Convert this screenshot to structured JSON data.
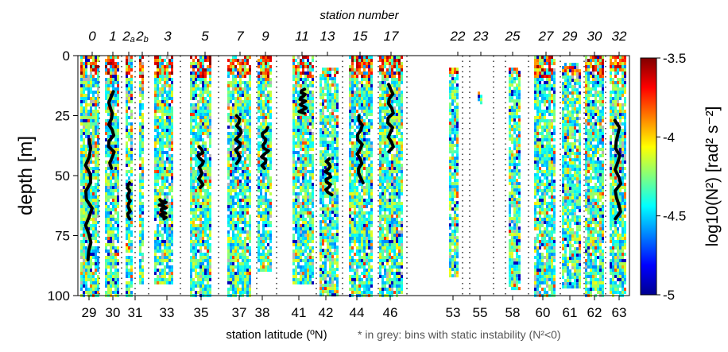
{
  "figure": {
    "top_label": "station number",
    "footnote": "* in grey: bins with static instability (N²<0)"
  },
  "chart_data": {
    "type": "heatmap",
    "xlabel": "station latitude (ºN)",
    "ylabel": "depth [m]",
    "ylim": [
      0,
      100
    ],
    "yticks": [
      0,
      25,
      50,
      75,
      100
    ],
    "colorbar": {
      "label": "log10(N²) [rad² s⁻²]",
      "range": [
        -5,
        -3.5
      ],
      "ticks": [
        "-3.5",
        "-4",
        "-4.5",
        "-5"
      ],
      "tick_values": [
        -3.5,
        -4,
        -4.5,
        -5
      ]
    },
    "station_numbers": [
      "0",
      "1",
      "2a",
      "2b",
      "3",
      "5",
      "7",
      "9",
      "11",
      "13",
      "15",
      "17",
      "22",
      "23",
      "25",
      "27",
      "29",
      "30",
      "32"
    ],
    "latitude_labels": [
      "29",
      "30",
      "31",
      "33",
      "35",
      "37",
      "38",
      "41",
      "42",
      "44",
      "46",
      "53",
      "55",
      "58",
      "60",
      "61",
      "62",
      "63"
    ],
    "grey_meaning": "N²<0",
    "stations": [
      {
        "num": "0",
        "lat": 29,
        "depth_range": [
          0,
          100
        ],
        "black_line_depth": [
          35,
          85
        ]
      },
      {
        "num": "1",
        "lat": 30,
        "depth_range": [
          0,
          100
        ],
        "black_line_depth": [
          15,
          47
        ]
      },
      {
        "num": "2a",
        "lat": 31,
        "depth_range": [
          0,
          100
        ],
        "black_line_depth": [
          53,
          68
        ]
      },
      {
        "num": "2b",
        "lat": 31,
        "depth_range": [
          0,
          95
        ],
        "black_line_depth": null
      },
      {
        "num": "3",
        "lat": 33,
        "depth_range": [
          0,
          95
        ],
        "black_line_depth": [
          60,
          68
        ]
      },
      {
        "num": "5",
        "lat": 35,
        "depth_range": [
          0,
          100
        ],
        "black_line_depth": [
          38,
          55
        ]
      },
      {
        "num": "7",
        "lat": 37,
        "depth_range": [
          0,
          100
        ],
        "black_line_depth": [
          25,
          45
        ]
      },
      {
        "num": "9",
        "lat": 38,
        "depth_range": [
          0,
          90
        ],
        "black_line_depth": [
          30,
          47
        ]
      },
      {
        "num": "11",
        "lat": 41,
        "depth_range": [
          0,
          95
        ],
        "black_line_depth": [
          14,
          24
        ]
      },
      {
        "num": "13",
        "lat": 42,
        "depth_range": [
          5,
          100
        ],
        "black_line_depth": [
          43,
          58
        ]
      },
      {
        "num": "15",
        "lat": 44,
        "depth_range": [
          0,
          100
        ],
        "black_line_depth": [
          25,
          53
        ]
      },
      {
        "num": "17",
        "lat": 46,
        "depth_range": [
          0,
          100
        ],
        "black_line_depth": [
          12,
          40
        ]
      },
      {
        "num": "22",
        "lat": 53,
        "depth_range": [
          5,
          92
        ],
        "black_line_depth": null
      },
      {
        "num": "23",
        "lat": 55,
        "depth_range": [
          15,
          20
        ],
        "black_line_depth": null
      },
      {
        "num": "25",
        "lat": 58,
        "depth_range": [
          5,
          97
        ],
        "black_line_depth": null
      },
      {
        "num": "27",
        "lat": 60,
        "depth_range": [
          0,
          100
        ],
        "black_line_depth": null
      },
      {
        "num": "29",
        "lat": 61,
        "depth_range": [
          3,
          97
        ],
        "black_line_depth": null
      },
      {
        "num": "30",
        "lat": 62,
        "depth_range": [
          0,
          100
        ],
        "black_line_depth": null
      },
      {
        "num": "32",
        "lat": 63,
        "depth_range": [
          0,
          100
        ],
        "black_line_depth": [
          27,
          68
        ]
      }
    ]
  }
}
